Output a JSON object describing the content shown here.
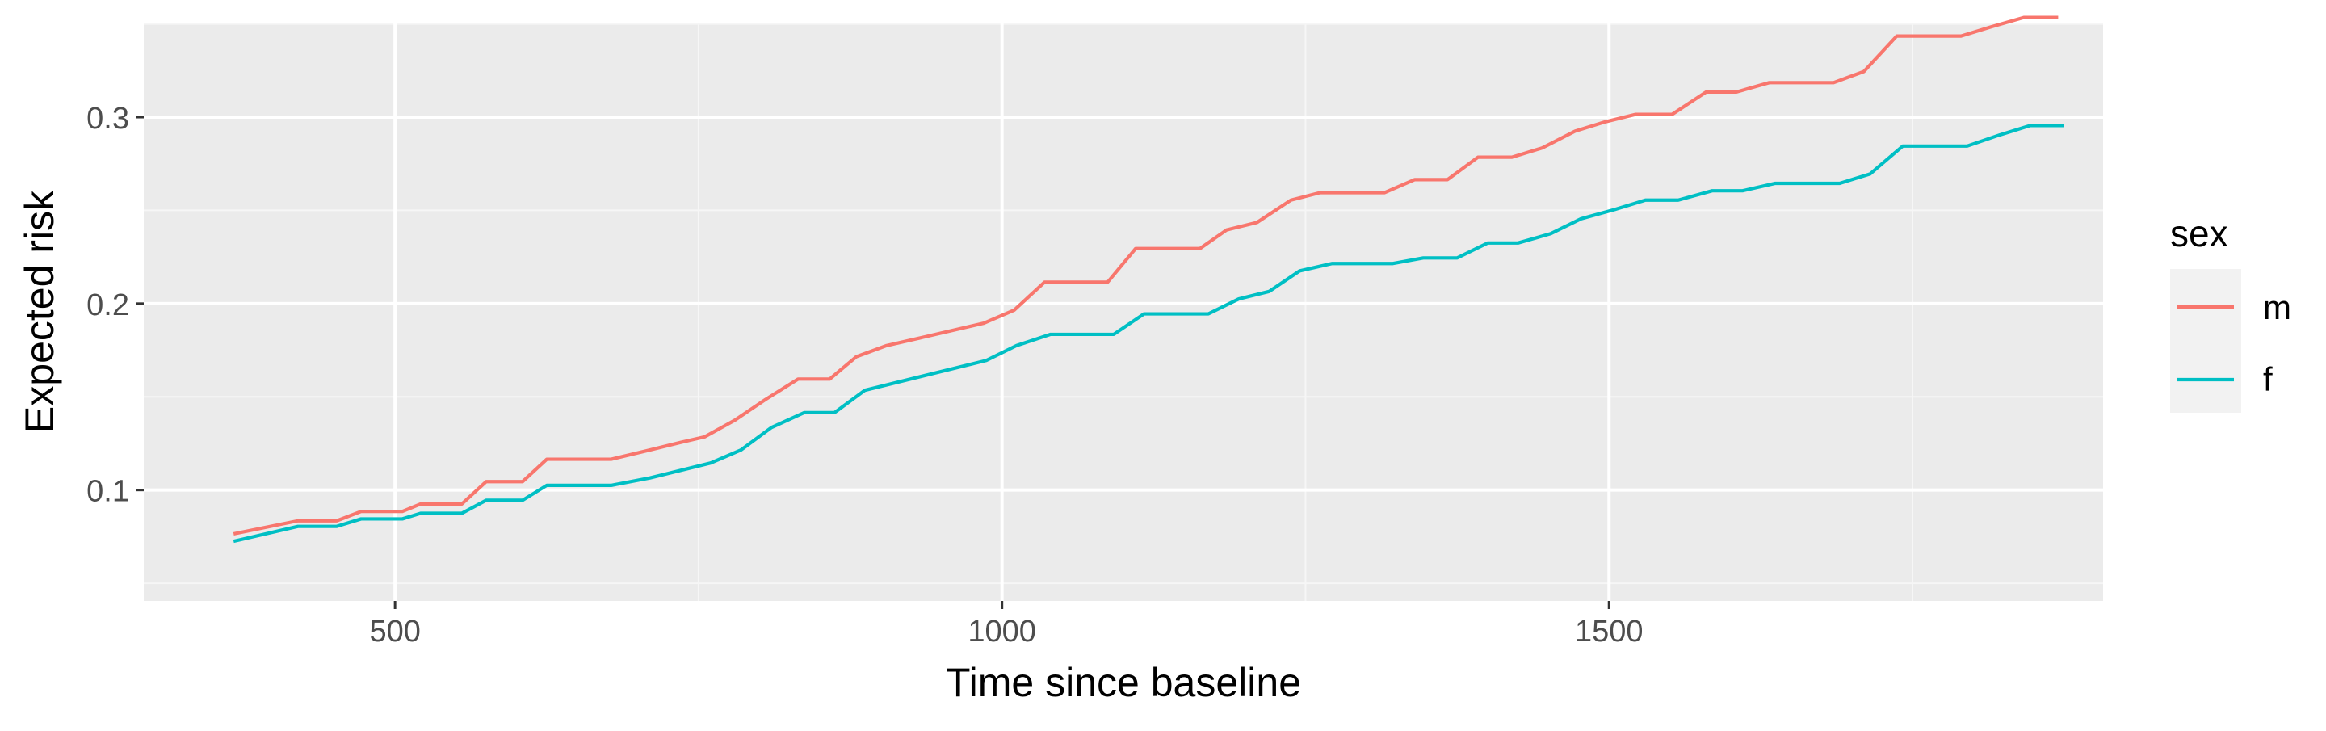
{
  "chart_data": {
    "type": "line",
    "title": "",
    "xlabel": "Time since baseline",
    "ylabel": "Expected risk",
    "xlim": [
      293,
      1907
    ],
    "ylim": [
      0.0405,
      0.3507
    ],
    "x_ticks": [
      500,
      1000,
      1500
    ],
    "x_tick_labels": [
      "500",
      "1000",
      "1500"
    ],
    "y_ticks": [
      0.1,
      0.2,
      0.3
    ],
    "y_tick_labels": [
      "0.1",
      "0.2",
      "0.3"
    ],
    "grid": true,
    "legend": {
      "title": "sex",
      "placement": "right"
    },
    "colors": {
      "panel_background": "#ebebeb",
      "grid_major": "#ffffff",
      "grid_minor": "#f6f6f6",
      "axis_text": "#4d4d4d",
      "axis_title": "#000000",
      "legend_key_background": "#f2f2f2"
    },
    "series": [
      {
        "name": "m",
        "color": "#f8766d",
        "points": [
          [
            367,
            0.0765
          ],
          [
            420,
            0.0835
          ],
          [
            452,
            0.0835
          ],
          [
            472,
            0.0885
          ],
          [
            506,
            0.0885
          ],
          [
            521,
            0.0925
          ],
          [
            555,
            0.0925
          ],
          [
            575,
            0.1045
          ],
          [
            605,
            0.1045
          ],
          [
            625,
            0.1165
          ],
          [
            678,
            0.1165
          ],
          [
            710,
            0.1215
          ],
          [
            735,
            0.1255
          ],
          [
            755,
            0.1285
          ],
          [
            780,
            0.1375
          ],
          [
            805,
            0.1485
          ],
          [
            832,
            0.1595
          ],
          [
            858,
            0.1595
          ],
          [
            880,
            0.1715
          ],
          [
            905,
            0.1775
          ],
          [
            932,
            0.1815
          ],
          [
            985,
            0.1895
          ],
          [
            1010,
            0.1965
          ],
          [
            1035,
            0.2115
          ],
          [
            1087,
            0.2115
          ],
          [
            1110,
            0.2295
          ],
          [
            1163,
            0.2295
          ],
          [
            1185,
            0.2395
          ],
          [
            1210,
            0.2435
          ],
          [
            1238,
            0.2555
          ],
          [
            1262,
            0.2595
          ],
          [
            1315,
            0.2595
          ],
          [
            1340,
            0.2665
          ],
          [
            1367,
            0.2665
          ],
          [
            1392,
            0.2785
          ],
          [
            1420,
            0.2785
          ],
          [
            1445,
            0.2835
          ],
          [
            1472,
            0.2925
          ],
          [
            1497,
            0.2975
          ],
          [
            1522,
            0.3015
          ],
          [
            1552,
            0.3015
          ],
          [
            1580,
            0.3135
          ],
          [
            1605,
            0.3135
          ],
          [
            1632,
            0.3185
          ],
          [
            1685,
            0.3185
          ],
          [
            1710,
            0.3245
          ],
          [
            1737,
            0.3435
          ],
          [
            1790,
            0.3435
          ],
          [
            1815,
            0.3485
          ],
          [
            1842,
            0.3535
          ],
          [
            1870,
            0.3535
          ]
        ]
      },
      {
        "name": "f",
        "color": "#00bfc4",
        "points": [
          [
            367,
            0.0725
          ],
          [
            420,
            0.0805
          ],
          [
            452,
            0.0805
          ],
          [
            472,
            0.0845
          ],
          [
            506,
            0.0845
          ],
          [
            521,
            0.0875
          ],
          [
            555,
            0.0875
          ],
          [
            575,
            0.0945
          ],
          [
            605,
            0.0945
          ],
          [
            625,
            0.1025
          ],
          [
            678,
            0.1025
          ],
          [
            710,
            0.1065
          ],
          [
            735,
            0.1105
          ],
          [
            760,
            0.1145
          ],
          [
            785,
            0.1215
          ],
          [
            810,
            0.1335
          ],
          [
            837,
            0.1415
          ],
          [
            862,
            0.1415
          ],
          [
            887,
            0.1535
          ],
          [
            912,
            0.1575
          ],
          [
            937,
            0.1615
          ],
          [
            987,
            0.1695
          ],
          [
            1012,
            0.1775
          ],
          [
            1040,
            0.1835
          ],
          [
            1092,
            0.1835
          ],
          [
            1117,
            0.1945
          ],
          [
            1170,
            0.1945
          ],
          [
            1195,
            0.2025
          ],
          [
            1220,
            0.2065
          ],
          [
            1245,
            0.2175
          ],
          [
            1272,
            0.2215
          ],
          [
            1322,
            0.2215
          ],
          [
            1347,
            0.2245
          ],
          [
            1375,
            0.2245
          ],
          [
            1400,
            0.2325
          ],
          [
            1425,
            0.2325
          ],
          [
            1452,
            0.2375
          ],
          [
            1477,
            0.2455
          ],
          [
            1505,
            0.2505
          ],
          [
            1530,
            0.2555
          ],
          [
            1557,
            0.2555
          ],
          [
            1585,
            0.2605
          ],
          [
            1610,
            0.2605
          ],
          [
            1637,
            0.2645
          ],
          [
            1690,
            0.2645
          ],
          [
            1715,
            0.2695
          ],
          [
            1742,
            0.2845
          ],
          [
            1795,
            0.2845
          ],
          [
            1822,
            0.2905
          ],
          [
            1847,
            0.2955
          ],
          [
            1875,
            0.2955
          ]
        ]
      }
    ]
  }
}
